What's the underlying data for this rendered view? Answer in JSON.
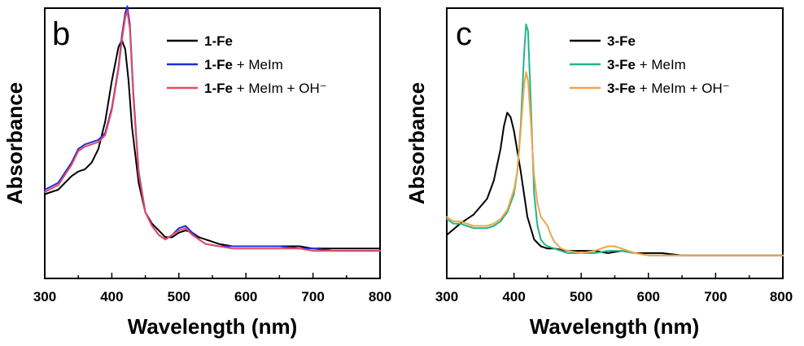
{
  "chart_data": [
    {
      "type": "line",
      "panel_label": "b",
      "xlabel": "Wavelength (nm)",
      "ylabel": "Absorbance",
      "xlim": [
        300,
        800
      ],
      "ylim": [
        0,
        1.1
      ],
      "x_ticks": [
        "300",
        "400",
        "500",
        "600",
        "700",
        "800"
      ],
      "y_ticks_shown": false,
      "legend_position": "top-right",
      "series": [
        {
          "name": "1-Fe",
          "legend_bold": "1-Fe",
          "legend_rest": "",
          "color": "#000000",
          "x": [
            300,
            320,
            340,
            350,
            360,
            370,
            380,
            390,
            400,
            410,
            415,
            420,
            425,
            430,
            440,
            450,
            460,
            470,
            480,
            490,
            500,
            510,
            520,
            530,
            540,
            560,
            580,
            600,
            620,
            650,
            680,
            700,
            730,
            760,
            800
          ],
          "y": [
            0.3,
            0.32,
            0.38,
            0.4,
            0.41,
            0.44,
            0.5,
            0.62,
            0.8,
            0.95,
            0.98,
            0.94,
            0.8,
            0.6,
            0.35,
            0.22,
            0.17,
            0.14,
            0.11,
            0.11,
            0.13,
            0.14,
            0.13,
            0.11,
            0.1,
            0.08,
            0.07,
            0.07,
            0.07,
            0.07,
            0.07,
            0.06,
            0.06,
            0.06,
            0.06
          ]
        },
        {
          "name": "1-Fe + MeIm",
          "legend_bold": "1-Fe",
          "legend_rest": " + MeIm",
          "color": "#1f2fe0",
          "x": [
            300,
            320,
            340,
            350,
            360,
            370,
            380,
            390,
            400,
            410,
            415,
            420,
            423,
            427,
            432,
            440,
            450,
            460,
            470,
            480,
            490,
            500,
            510,
            520,
            530,
            540,
            560,
            580,
            600,
            620,
            650,
            680,
            700,
            730,
            760,
            800
          ],
          "y": [
            0.32,
            0.35,
            0.44,
            0.5,
            0.52,
            0.53,
            0.54,
            0.57,
            0.68,
            0.86,
            1.0,
            1.1,
            1.13,
            1.05,
            0.75,
            0.4,
            0.22,
            0.16,
            0.12,
            0.1,
            0.12,
            0.15,
            0.16,
            0.13,
            0.1,
            0.08,
            0.07,
            0.07,
            0.07,
            0.07,
            0.07,
            0.06,
            0.06,
            0.05,
            0.05,
            0.05
          ]
        },
        {
          "name": "1-Fe + MeIm + OH⁻",
          "legend_bold": "1-Fe",
          "legend_rest": " + MeIm + OH⁻",
          "color": "#e84a5f",
          "x": [
            300,
            320,
            340,
            350,
            360,
            370,
            380,
            390,
            400,
            410,
            415,
            420,
            423,
            427,
            432,
            440,
            450,
            460,
            470,
            480,
            490,
            500,
            510,
            520,
            530,
            540,
            560,
            580,
            600,
            620,
            650,
            680,
            700,
            730,
            760,
            800
          ],
          "y": [
            0.31,
            0.34,
            0.43,
            0.49,
            0.51,
            0.52,
            0.53,
            0.56,
            0.67,
            0.85,
            0.98,
            1.08,
            1.11,
            1.03,
            0.73,
            0.39,
            0.22,
            0.16,
            0.12,
            0.1,
            0.12,
            0.14,
            0.15,
            0.12,
            0.1,
            0.08,
            0.07,
            0.06,
            0.06,
            0.06,
            0.06,
            0.06,
            0.05,
            0.05,
            0.05,
            0.05
          ]
        }
      ]
    },
    {
      "type": "line",
      "panel_label": "c",
      "xlabel": "Wavelength (nm)",
      "ylabel": "Absorbance",
      "xlim": [
        300,
        800
      ],
      "ylim": [
        0,
        1.1
      ],
      "x_ticks": [
        "300",
        "400",
        "500",
        "600",
        "700",
        "800"
      ],
      "y_ticks_shown": false,
      "legend_position": "top-right",
      "series": [
        {
          "name": "3-Fe",
          "legend_bold": "3-Fe",
          "legend_rest": "",
          "color": "#000000",
          "x": [
            300,
            320,
            340,
            360,
            370,
            380,
            385,
            390,
            395,
            400,
            410,
            420,
            430,
            440,
            450,
            460,
            480,
            500,
            520,
            540,
            560,
            580,
            600,
            620,
            650,
            700,
            750,
            800
          ],
          "y": [
            0.12,
            0.17,
            0.21,
            0.28,
            0.36,
            0.5,
            0.6,
            0.66,
            0.64,
            0.58,
            0.4,
            0.2,
            0.1,
            0.07,
            0.06,
            0.06,
            0.05,
            0.05,
            0.05,
            0.04,
            0.05,
            0.04,
            0.04,
            0.04,
            0.03,
            0.03,
            0.03,
            0.03
          ]
        },
        {
          "name": "3-Fe + MeIm",
          "legend_bold": "3-Fe",
          "legend_rest": " + MeIm",
          "color": "#22b48c",
          "x": [
            300,
            310,
            320,
            330,
            340,
            350,
            360,
            370,
            380,
            390,
            400,
            405,
            410,
            415,
            418,
            421,
            425,
            430,
            435,
            440,
            445,
            450,
            460,
            480,
            500,
            520,
            540,
            560,
            580,
            600,
            650,
            700,
            750,
            800
          ],
          "y": [
            0.19,
            0.17,
            0.17,
            0.16,
            0.15,
            0.15,
            0.15,
            0.16,
            0.18,
            0.22,
            0.3,
            0.4,
            0.6,
            0.92,
            1.05,
            1.02,
            0.7,
            0.3,
            0.16,
            0.1,
            0.08,
            0.07,
            0.06,
            0.04,
            0.04,
            0.04,
            0.05,
            0.05,
            0.04,
            0.03,
            0.03,
            0.03,
            0.03,
            0.03
          ]
        },
        {
          "name": "3-Fe + MeIm + OH⁻",
          "legend_bold": "3-Fe",
          "legend_rest": " + MeIm + OH⁻",
          "color": "#f2a54a",
          "x": [
            300,
            310,
            320,
            330,
            340,
            350,
            360,
            370,
            380,
            390,
            400,
            405,
            410,
            415,
            418,
            421,
            425,
            430,
            435,
            440,
            445,
            450,
            455,
            460,
            470,
            480,
            500,
            520,
            540,
            550,
            560,
            580,
            600,
            650,
            700,
            750,
            800
          ],
          "y": [
            0.2,
            0.18,
            0.18,
            0.17,
            0.16,
            0.16,
            0.16,
            0.17,
            0.19,
            0.23,
            0.32,
            0.4,
            0.58,
            0.78,
            0.84,
            0.8,
            0.62,
            0.38,
            0.26,
            0.2,
            0.18,
            0.16,
            0.12,
            0.09,
            0.06,
            0.05,
            0.04,
            0.05,
            0.07,
            0.07,
            0.06,
            0.04,
            0.03,
            0.03,
            0.03,
            0.03,
            0.03
          ]
        }
      ]
    }
  ]
}
